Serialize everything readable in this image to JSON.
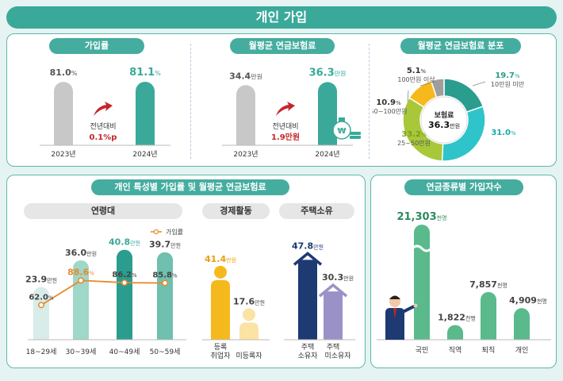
{
  "page_title": "개인 가입",
  "colors": {
    "teal": "#3aa99a",
    "gray": "#c8c8c8",
    "orange": "#e8892a",
    "navy": "#1d3a73",
    "purple": "#9a92c6",
    "yellow": "#f6b91d",
    "green": "#5aba8c",
    "red": "#c3262c"
  },
  "enrollment": {
    "title": "가입률",
    "compare_label": "전년대비",
    "change": "0.1%p",
    "y2023": {
      "year": "2023년",
      "value": "81.0%"
    },
    "y2024": {
      "year": "2024년",
      "value": "81.1%"
    }
  },
  "avg_premium": {
    "title": "월평균 연금보험료",
    "compare_label": "전년대비",
    "change": "1.9만원",
    "y2023": {
      "year": "2023년",
      "value": "34.4만원"
    },
    "y2024": {
      "year": "2024년",
      "value": "36.3만원"
    }
  },
  "distribution": {
    "title": "월평균 연금보험료 분포",
    "center_label": "보험료",
    "center_value": "36.3만원",
    "slices": [
      {
        "label": "10만원 미만",
        "value": "19.7%",
        "color": "#2a9d8f"
      },
      {
        "label": "10~25만원",
        "value": "31.0%",
        "color": "#2ec4c9"
      },
      {
        "label": "25~50만원",
        "value": "33.2%",
        "color": "#a8c83a"
      },
      {
        "label": "50~100만원",
        "value": "10.9%",
        "color": "#f6b91d"
      },
      {
        "label": "100만원 이상",
        "value": "5.1%",
        "color": "#9e9e9e"
      }
    ]
  },
  "characteristics": {
    "title": "개인 특성별 가입률 및 월평균 연금보험료",
    "age": {
      "header": "연령대",
      "legend": "가입률",
      "groups": [
        {
          "label": "18~29세",
          "premium": "23.9만원",
          "rate": "62.0%"
        },
        {
          "label": "30~39세",
          "premium": "36.0만원",
          "rate": "88.6%"
        },
        {
          "label": "40~49세",
          "premium": "40.8만원",
          "rate": "86.2%"
        },
        {
          "label": "50~59세",
          "premium": "39.7만원",
          "rate": "85.8%"
        }
      ]
    },
    "economic": {
      "header": "경제활동",
      "groups": [
        {
          "label1": "등록",
          "label2": "취업자",
          "premium": "41.4만원"
        },
        {
          "label1": "",
          "label2": "미등록자",
          "premium": "17.6만원"
        }
      ]
    },
    "housing": {
      "header": "주택소유",
      "groups": [
        {
          "label1": "주택",
          "label2": "소유자",
          "premium": "47.8만원"
        },
        {
          "label1": "주택",
          "label2": "미소유자",
          "premium": "30.3만원"
        }
      ]
    }
  },
  "pension_types": {
    "title": "연금종류별 가입자수",
    "groups": [
      {
        "label": "국민",
        "value": "21,303천명"
      },
      {
        "label": "직역",
        "value": "1,822천명"
      },
      {
        "label": "퇴직",
        "value": "7,857천명"
      },
      {
        "label": "개인",
        "value": "4,909천명"
      }
    ]
  },
  "chart_data": [
    {
      "type": "bar",
      "title": "가입률",
      "categories": [
        "2023년",
        "2024년"
      ],
      "values": [
        81.0,
        81.1
      ]
    },
    {
      "type": "bar",
      "title": "월평균 연금보험료",
      "categories": [
        "2023년",
        "2024년"
      ],
      "values": [
        34.4,
        36.3
      ]
    },
    {
      "type": "pie",
      "title": "월평균 연금보험료 분포",
      "categories": [
        "10만원 미만",
        "10~25만원",
        "25~50만원",
        "50~100만원",
        "100만원 이상"
      ],
      "values": [
        19.7,
        31.0,
        33.2,
        10.9,
        5.1
      ]
    },
    {
      "type": "bar",
      "title": "연령대",
      "categories": [
        "18~29세",
        "30~39세",
        "40~49세",
        "50~59세"
      ],
      "series": [
        {
          "name": "",
          "values": [
            23.9,
            36.0,
            40.8,
            39.7
          ]
        },
        {
          "name": "가입률",
          "values": [
            62.0,
            88.6,
            86.2,
            85.8
          ]
        }
      ]
    },
    {
      "type": "bar",
      "title": "경제활동",
      "categories": [
        "등록 취업자",
        "미등록자"
      ],
      "values": [
        41.4,
        17.6
      ]
    },
    {
      "type": "bar",
      "title": "주택소유",
      "categories": [
        "주택 소유자",
        "주택 미소유자"
      ],
      "values": [
        47.8,
        30.3
      ]
    },
    {
      "type": "bar",
      "title": "연금종류별 가입자수",
      "categories": [
        "국민",
        "직역",
        "퇴직",
        "개인"
      ],
      "values": [
        21303,
        1822,
        7857,
        4909
      ]
    }
  ]
}
